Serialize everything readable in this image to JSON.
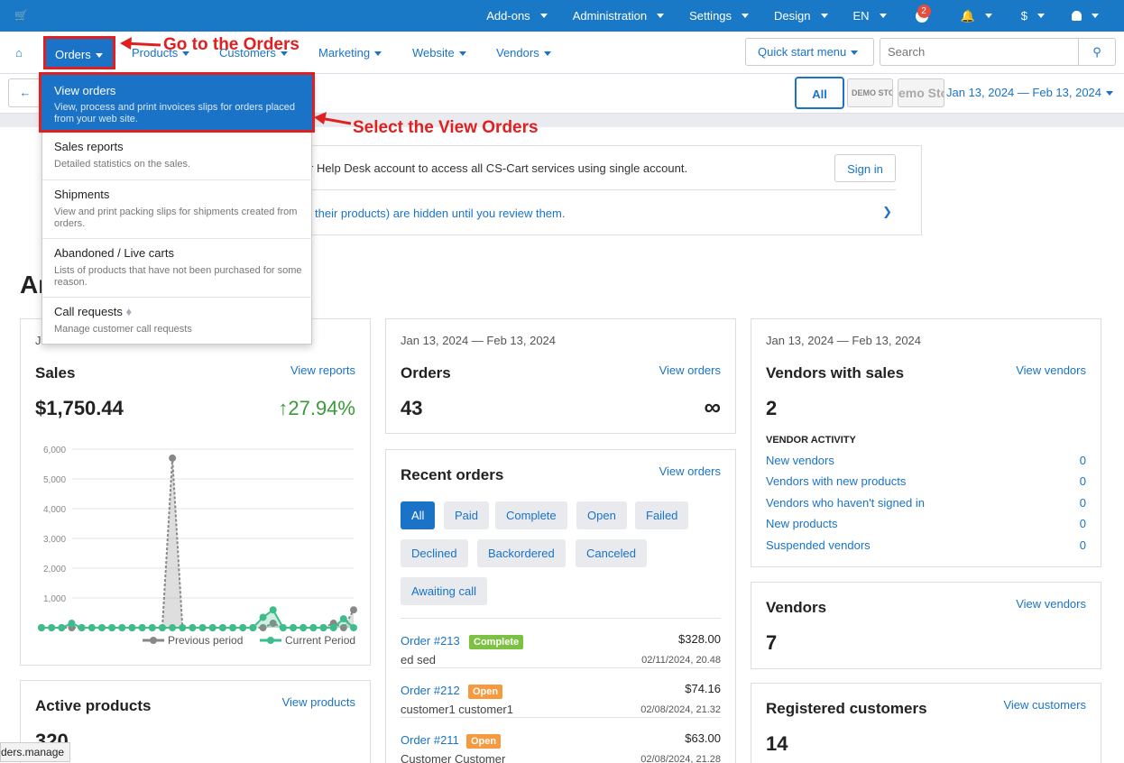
{
  "topbar": {
    "cart_icon": "shopping-cart-icon",
    "items": [
      {
        "label": "Add-ons"
      },
      {
        "label": "Administration"
      },
      {
        "label": "Settings"
      },
      {
        "label": "Design"
      },
      {
        "label": "EN"
      }
    ],
    "help_badge": "2",
    "currency": "$"
  },
  "nav": {
    "orders": "Orders",
    "products": "Products",
    "customers": "Customers",
    "marketing": "Marketing",
    "website": "Website",
    "vendors": "Vendors",
    "quick_start": "Quick start menu",
    "search_placeholder": "Search"
  },
  "subbar": {
    "all_label": "All",
    "store1": "DEMO STORE",
    "store2": "emo Sto",
    "date_range": "Jan 13, 2024 — Feb 13, 2024"
  },
  "notice": {
    "text1": "r Help Desk account to access all CS-Cart services using single account.",
    "signin": "Sign in",
    "text2": "their products) are hidden until you review them."
  },
  "heading_partial": "An",
  "dropdown": {
    "items": [
      {
        "label": "View orders",
        "desc": "View, process and print invoices slips for orders placed from your web site."
      },
      {
        "label": "Sales reports",
        "desc": "Detailed statistics on the sales."
      },
      {
        "label": "Shipments",
        "desc": "View and print packing slips for shipments created from orders."
      },
      {
        "label": "Abandoned / Live carts",
        "desc": "Lists of products that have not been purchased for some reason."
      },
      {
        "label": "Call requests",
        "desc": "Manage customer call requests"
      }
    ]
  },
  "annotations": {
    "a1": "Go to the Orders",
    "a2": "Select the View Orders"
  },
  "sales": {
    "date_partial": "J",
    "title": "Sales",
    "link": "View reports",
    "value": "$1,750.44",
    "change": "27.94%",
    "legend_prev": "Previous period",
    "legend_curr": "Current Period"
  },
  "orders_card": {
    "date": "Jan 13, 2024 — Feb 13, 2024",
    "title": "Orders",
    "link": "View orders",
    "value": "43",
    "trend": "∞"
  },
  "vendors_sales": {
    "date": "Jan 13, 2024 — Feb 13, 2024",
    "title": "Vendors with sales",
    "link": "View vendors",
    "value": "2",
    "activity_title": "VENDOR ACTIVITY",
    "activity": [
      {
        "label": "New vendors",
        "value": "0"
      },
      {
        "label": "Vendors with new products",
        "value": "0"
      },
      {
        "label": "Vendors who haven't signed in",
        "value": "0"
      },
      {
        "label": "New products",
        "value": "0"
      },
      {
        "label": "Suspended vendors",
        "value": "0"
      }
    ]
  },
  "recent_orders": {
    "title": "Recent orders",
    "link": "View orders",
    "filters": [
      "All",
      "Paid",
      "Complete",
      "Open",
      "Failed",
      "Declined",
      "Backordered",
      "Canceled",
      "Awaiting call"
    ],
    "rows": [
      {
        "id": "Order #213",
        "status": "Complete",
        "status_color": "#7cc142",
        "customer": "ed sed",
        "amount": "$328.00",
        "date": "02/11/2024, 20.48"
      },
      {
        "id": "Order #212",
        "status": "Open",
        "status_color": "#f6993f",
        "customer": "customer1 customer1",
        "amount": "$74.16",
        "date": "02/08/2024, 21.32"
      },
      {
        "id": "Order #211",
        "status": "Open",
        "status_color": "#f6993f",
        "customer": "Customer Customer",
        "amount": "$63.00",
        "date": "02/08/2024, 21.28"
      }
    ]
  },
  "vendors_card": {
    "title": "Vendors",
    "link": "View vendors",
    "value": "7"
  },
  "active_products": {
    "title": "Active products",
    "link": "View products",
    "value": "320"
  },
  "registered_customers": {
    "title": "Registered customers",
    "link": "View customers",
    "value": "14"
  },
  "status_tip": "ders.manage",
  "colors": {
    "primary": "#1a73c7",
    "topbar": "#1a79c6",
    "annotation": "#e02020",
    "current": "#3dbd8c",
    "previous": "#888888"
  },
  "chart_data": {
    "type": "line",
    "title": "",
    "xlabel": "",
    "ylabel": "",
    "ylim": [
      0,
      6000
    ],
    "yticks": [
      "6,000",
      "5,000",
      "4,000",
      "3,000",
      "2,000",
      "1,000"
    ],
    "x": [
      1,
      2,
      3,
      4,
      5,
      6,
      7,
      8,
      9,
      10,
      11,
      12,
      13,
      14,
      15,
      16,
      17,
      18,
      19,
      20,
      21,
      22,
      23,
      24,
      25,
      26,
      27,
      28,
      29,
      30,
      31,
      32
    ],
    "series": [
      {
        "name": "Previous period",
        "values": [
          0,
          0,
          0,
          0,
          0,
          0,
          0,
          0,
          0,
          0,
          0,
          0,
          0,
          5700,
          0,
          0,
          0,
          0,
          0,
          0,
          0,
          0,
          0,
          150,
          0,
          0,
          0,
          0,
          0,
          150,
          0,
          600
        ]
      },
      {
        "name": "Current Period",
        "values": [
          0,
          0,
          0,
          150,
          0,
          0,
          0,
          0,
          0,
          0,
          0,
          0,
          0,
          0,
          0,
          0,
          0,
          0,
          0,
          0,
          0,
          0,
          350,
          600,
          0,
          0,
          0,
          0,
          0,
          0,
          300,
          0
        ]
      }
    ]
  }
}
